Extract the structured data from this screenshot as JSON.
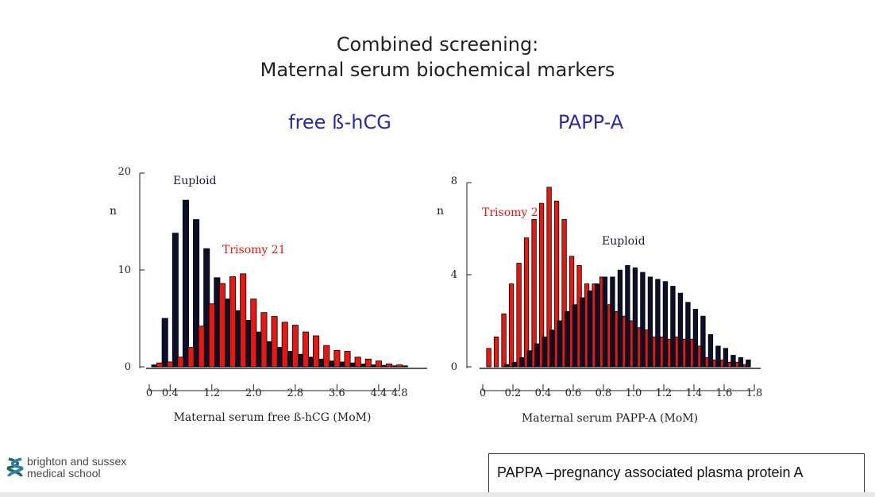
{
  "slide": {
    "title_line1": "Combined screening:",
    "title_line2": "Maternal serum biochemical markers",
    "subtitle_left": "free ß-hCG",
    "subtitle_right": "PAPP-A",
    "logo_line1": "brighton and sussex",
    "logo_line2": "medical school",
    "note": "PAPPA –pregnancy associated plasma protein A"
  },
  "colors": {
    "euploid": "#0b0f2a",
    "trisomy": "#e8170f",
    "subtitle": "#2a2aa8"
  },
  "chart_data": [
    {
      "type": "bar",
      "ylabel": "n",
      "xlabel": "Maternal serum free ß-hCG (MoM)",
      "ylim": [
        0,
        20
      ],
      "yticks": [
        0,
        10,
        20
      ],
      "xlim": [
        0,
        5.0
      ],
      "xticks": [
        0,
        0.4,
        1.2,
        2.0,
        2.8,
        3.6,
        4.4,
        4.8
      ],
      "bin_width": 0.2,
      "series": [
        {
          "name": "Euploid",
          "x": [
            0.1,
            0.3,
            0.5,
            0.7,
            0.9,
            1.1,
            1.3,
            1.5,
            1.7,
            1.9,
            2.1,
            2.3,
            2.5,
            2.7,
            2.9,
            3.1,
            3.3,
            3.5,
            3.7,
            3.9,
            4.1,
            4.3,
            4.5,
            4.7,
            4.9
          ],
          "values": [
            0.2,
            5.0,
            13.8,
            17.2,
            15.2,
            12.2,
            9.2,
            7.0,
            5.8,
            4.8,
            3.6,
            2.6,
            2.0,
            1.6,
            1.3,
            1.0,
            0.8,
            0.6,
            0.5,
            0.4,
            0.3,
            0.2,
            0.15,
            0.1,
            0.1
          ]
        },
        {
          "name": "Trisomy 21",
          "x": [
            0.2,
            0.4,
            0.6,
            0.8,
            1.0,
            1.2,
            1.4,
            1.6,
            1.8,
            2.0,
            2.2,
            2.4,
            2.6,
            2.8,
            3.0,
            3.2,
            3.4,
            3.6,
            3.8,
            4.0,
            4.2,
            4.4,
            4.6,
            4.8
          ],
          "values": [
            0.4,
            0.5,
            1.0,
            2.0,
            4.2,
            6.5,
            8.6,
            9.3,
            9.6,
            7.0,
            5.6,
            5.2,
            4.6,
            4.3,
            3.6,
            3.2,
            2.2,
            1.7,
            1.6,
            1.0,
            0.8,
            0.6,
            0.3,
            0.2
          ]
        }
      ],
      "annotations": [
        "Euploid",
        "Trisomy 21"
      ]
    },
    {
      "type": "bar",
      "ylabel": "n",
      "xlabel": "Maternal serum PAPP-A (MoM)",
      "ylim": [
        0,
        8
      ],
      "yticks": [
        0,
        4,
        8
      ],
      "xlim": [
        0,
        1.8
      ],
      "xticks": [
        0,
        0.2,
        0.4,
        0.6,
        0.8,
        1.0,
        1.2,
        1.4,
        1.6,
        1.8
      ],
      "bin_width": 0.05,
      "series": [
        {
          "name": "Euploid",
          "x": [
            0.05,
            0.1,
            0.15,
            0.2,
            0.25,
            0.3,
            0.35,
            0.4,
            0.45,
            0.5,
            0.55,
            0.6,
            0.65,
            0.7,
            0.75,
            0.8,
            0.85,
            0.9,
            0.95,
            1.0,
            1.05,
            1.1,
            1.15,
            1.2,
            1.25,
            1.3,
            1.35,
            1.4,
            1.45,
            1.5,
            1.55,
            1.6,
            1.65,
            1.7,
            1.75
          ],
          "values": [
            0.0,
            0.0,
            0.1,
            0.2,
            0.4,
            0.7,
            1.0,
            1.3,
            1.6,
            2.0,
            2.4,
            2.7,
            3.0,
            3.3,
            3.6,
            3.9,
            3.9,
            4.2,
            4.4,
            4.3,
            4.1,
            3.9,
            3.8,
            3.7,
            3.5,
            3.2,
            2.8,
            2.5,
            2.2,
            1.4,
            0.9,
            0.8,
            0.5,
            0.4,
            0.3
          ]
        },
        {
          "name": "Trisomy 21",
          "x": [
            0.05,
            0.1,
            0.15,
            0.2,
            0.25,
            0.3,
            0.35,
            0.4,
            0.45,
            0.5,
            0.55,
            0.6,
            0.65,
            0.7,
            0.75,
            0.8,
            0.85,
            0.9,
            0.95,
            1.0,
            1.05,
            1.1,
            1.15,
            1.2,
            1.25,
            1.3,
            1.35,
            1.4,
            1.45,
            1.5,
            1.55,
            1.6,
            1.65,
            1.7,
            1.75
          ],
          "values": [
            0.8,
            1.3,
            2.3,
            3.6,
            4.5,
            5.6,
            6.4,
            7.1,
            7.8,
            7.2,
            6.4,
            4.8,
            4.4,
            3.6,
            3.6,
            3.9,
            2.7,
            2.4,
            2.2,
            2.0,
            1.7,
            1.6,
            1.3,
            1.3,
            1.2,
            1.3,
            1.2,
            1.2,
            0.9,
            0.4,
            0.3,
            0.3,
            0.2,
            0.2,
            0.1
          ]
        }
      ],
      "annotations": [
        "Trisomy 21",
        "Euploid"
      ]
    }
  ]
}
